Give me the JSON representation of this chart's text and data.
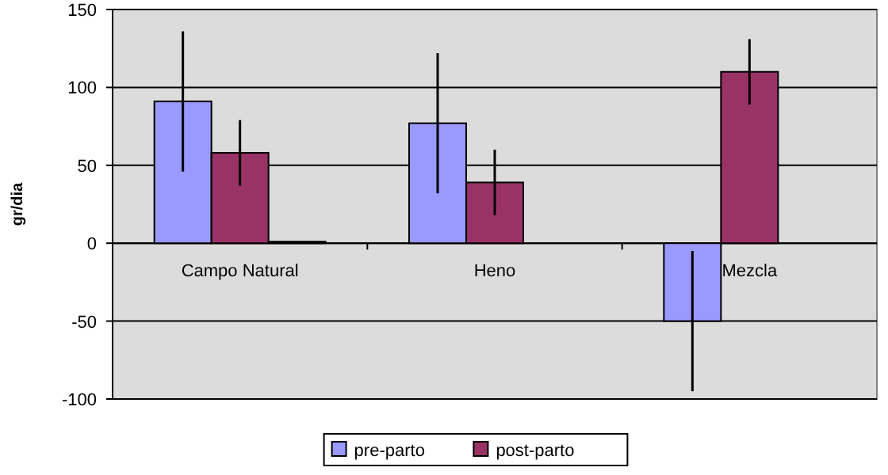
{
  "chart_data": {
    "type": "bar",
    "ylabel": "gr/dia",
    "categories": [
      "Campo Natural",
      "Heno",
      "Mezcla"
    ],
    "series": [
      {
        "name": "pre-parto",
        "color": "#9999ff",
        "values": [
          91,
          77,
          -50
        ],
        "errors": [
          45,
          45,
          45
        ]
      },
      {
        "name": "post-parto",
        "color": "#993366",
        "values": [
          58,
          39,
          110
        ],
        "errors": [
          21,
          21,
          21
        ]
      },
      {
        "color": "#000000",
        "values": [
          1,
          null,
          null
        ]
      }
    ],
    "ylim": [
      -100,
      150
    ],
    "yticks": [
      -100,
      -50,
      0,
      50,
      100,
      150
    ],
    "grid": "y",
    "legend": "bottom"
  }
}
